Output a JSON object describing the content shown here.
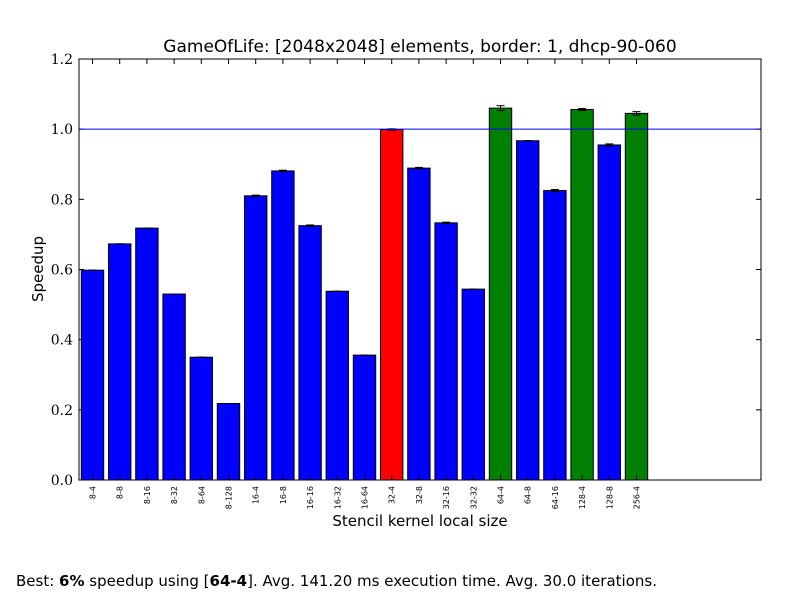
{
  "chart_data": {
    "type": "bar",
    "title": "GameOfLife: [2048x2048] elements, border: 1, dhcp-90-060",
    "xlabel": "Stencil kernel local size",
    "ylabel": "Speedup",
    "ylim": [
      0.0,
      1.2
    ],
    "yticks": [
      "0.0",
      "0.2",
      "0.4",
      "0.6",
      "0.8",
      "1.0",
      "1.2"
    ],
    "reference_line": 1.0,
    "grid": false,
    "categories": [
      "8-4",
      "8-8",
      "8-16",
      "8-32",
      "8-64",
      "8-128",
      "16-4",
      "16-8",
      "16-16",
      "16-32",
      "16-64",
      "32-4",
      "32-8",
      "32-16",
      "32-32",
      "64-4",
      "64-8",
      "64-16",
      "128-4",
      "128-8",
      "256-4"
    ],
    "values": [
      0.598,
      0.673,
      0.718,
      0.53,
      0.35,
      0.218,
      0.81,
      0.881,
      0.725,
      0.538,
      0.356,
      0.999,
      0.889,
      0.733,
      0.544,
      1.06,
      0.967,
      0.825,
      1.056,
      0.955,
      1.045
    ],
    "errors": [
      0.0,
      0.0,
      0.0,
      0.0,
      0.0,
      0.0,
      0.002,
      0.002,
      0.002,
      0.0,
      0.0,
      0.002,
      0.002,
      0.002,
      0.0,
      0.007,
      0.0,
      0.003,
      0.003,
      0.003,
      0.005
    ],
    "bar_colors": [
      "blue",
      "blue",
      "blue",
      "blue",
      "blue",
      "blue",
      "blue",
      "blue",
      "blue",
      "blue",
      "blue",
      "red",
      "blue",
      "blue",
      "blue",
      "green",
      "blue",
      "blue",
      "green",
      "blue",
      "green"
    ],
    "colors": {
      "blue": "#0000ff",
      "red": "#ff0000",
      "green": "#008000",
      "reference_line": "#0000ff"
    }
  },
  "footer": {
    "prefix": "Best: ",
    "speedup": "6%",
    "middle": " speedup using [",
    "config": "64-4",
    "suffix": "]. Avg. 141.20 ms execution time. Avg. 30.0 iterations."
  }
}
